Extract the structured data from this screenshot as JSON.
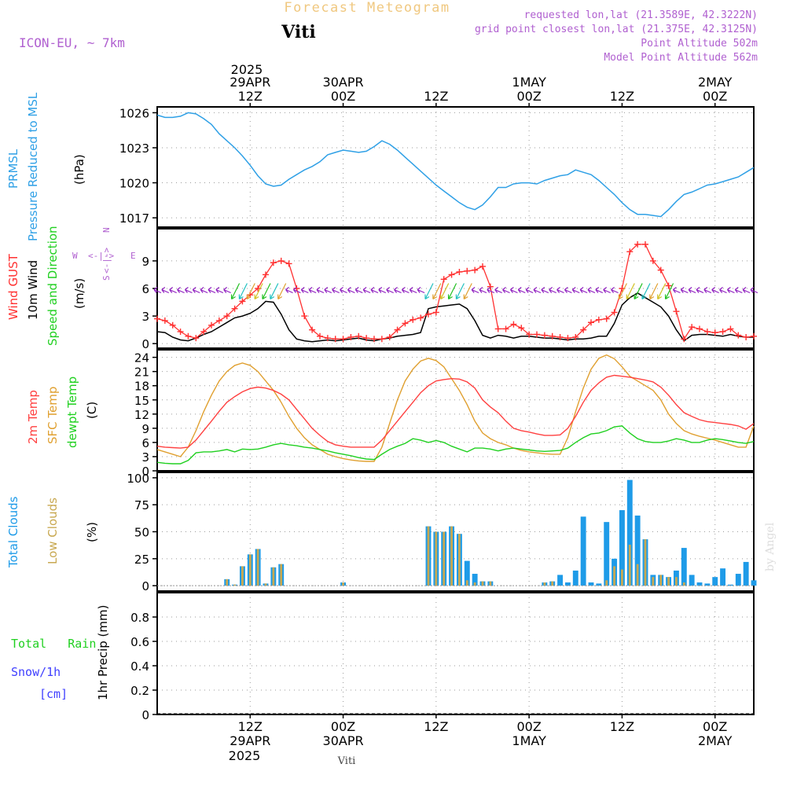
{
  "header": {
    "title": "Forecast Meteogram",
    "location": "Viti",
    "model": "ICON-EU, ~ 7km",
    "requested": "requested lon,lat (21.3589E, 42.3222N)",
    "gridpoint": "grid point closest lon,lat (21.375E, 42.3125N)",
    "point_alt": "Point Altitude 502m",
    "model_alt": "Model Point Altitude 562m",
    "footer": "Viti",
    "credit": "by Angel"
  },
  "time_axis": {
    "year": "2025",
    "ticks_top": [
      {
        "t": 12,
        "l1": "29APR",
        "l2": "12Z"
      },
      {
        "t": 24,
        "l1": "30APR",
        "l2": "00Z"
      },
      {
        "t": 36,
        "l1": "",
        "l2": "12Z"
      },
      {
        "t": 48,
        "l1": "1MAY",
        "l2": "00Z"
      },
      {
        "t": 60,
        "l1": "",
        "l2": "12Z"
      },
      {
        "t": 72,
        "l1": "2MAY",
        "l2": "00Z"
      }
    ],
    "ticks_bottom": [
      {
        "t": 12,
        "l1": "12Z",
        "l2": "29APR",
        "l3": "2025"
      },
      {
        "t": 24,
        "l1": "00Z",
        "l2": "30APR",
        "l3": ""
      },
      {
        "t": 36,
        "l1": "12Z",
        "l2": "",
        "l3": ""
      },
      {
        "t": 48,
        "l1": "00Z",
        "l2": "1MAY",
        "l3": ""
      },
      {
        "t": 60,
        "l1": "12Z",
        "l2": "",
        "l3": ""
      },
      {
        "t": 72,
        "l1": "00Z",
        "l2": "2MAY",
        "l3": ""
      }
    ],
    "units": "hours from 29APR 00Z",
    "range": [
      0,
      77
    ]
  },
  "colors": {
    "pressure": "#2fa0e6",
    "gust": "#ff3030",
    "wind": "#000000",
    "t2m": "#ff4040",
    "tsfc": "#e0a030",
    "dewpt": "#20d020",
    "total_clouds": "#1e9be8",
    "low_clouds": "#c8a850",
    "rain": "#20d020",
    "snow": "#4040ff",
    "purple": "#b060d0",
    "orange_title": "#f0c880"
  },
  "panels": {
    "pressure": {
      "label1": "PRMSL",
      "label2": "Pressure Reduced to MSL",
      "unit": "(hPa)"
    },
    "wind": {
      "label1": "Wind GUST",
      "label2": "10m Wind",
      "label3": "Speed and Direction",
      "unit": "(m/s)",
      "compass": {
        "n": "N",
        "s": "S",
        "w": "W",
        "e": "E"
      }
    },
    "temp": {
      "label1": "2m Temp",
      "label2": "SFC Temp",
      "label3": "dewpt Temp",
      "unit": "(C)"
    },
    "clouds": {
      "label1": "Total Clouds",
      "label2": "Low Clouds",
      "unit": "(%)"
    },
    "precip": {
      "label_rain": "Total   Rain",
      "label_snow": "Snow/1h",
      "label_cm": "[cm]",
      "unit": "1hr Precip (mm)"
    }
  },
  "chart_data": [
    {
      "type": "line",
      "name": "PRMSL",
      "ylim": [
        1016.2,
        1026.5
      ],
      "yticks": [
        1017,
        1020,
        1023,
        1026
      ],
      "x": [
        0,
        1,
        2,
        3,
        4,
        5,
        6,
        7,
        8,
        9,
        10,
        11,
        12,
        13,
        14,
        15,
        16,
        17,
        18,
        19,
        20,
        21,
        22,
        23,
        24,
        25,
        26,
        27,
        28,
        29,
        30,
        31,
        32,
        33,
        34,
        35,
        36,
        37,
        38,
        39,
        40,
        41,
        42,
        43,
        44,
        45,
        46,
        47,
        48,
        49,
        50,
        51,
        52,
        53,
        54,
        55,
        56,
        57,
        58,
        59,
        60,
        61,
        62,
        63,
        64,
        65,
        66,
        67,
        68,
        69,
        70,
        71,
        72,
        73,
        74,
        75,
        76,
        77
      ],
      "y": [
        1025.8,
        1025.6,
        1025.6,
        1025.7,
        1026.0,
        1025.9,
        1025.5,
        1025.0,
        1024.2,
        1023.6,
        1023.0,
        1022.3,
        1021.5,
        1020.6,
        1019.9,
        1019.7,
        1019.8,
        1020.3,
        1020.7,
        1021.1,
        1021.4,
        1021.8,
        1022.4,
        1022.6,
        1022.8,
        1022.7,
        1022.6,
        1022.7,
        1023.1,
        1023.6,
        1023.3,
        1022.8,
        1022.2,
        1021.6,
        1021.0,
        1020.4,
        1019.8,
        1019.3,
        1018.8,
        1018.3,
        1017.9,
        1017.7,
        1018.1,
        1018.8,
        1019.6,
        1019.6,
        1019.9,
        1020.0,
        1020.0,
        1019.9,
        1020.2,
        1020.4,
        1020.6,
        1020.7,
        1021.1,
        1020.9,
        1020.7,
        1020.2,
        1019.6,
        1019.0,
        1018.3,
        1017.7,
        1017.3,
        1017.3,
        1017.2,
        1017.1,
        1017.7,
        1018.4,
        1019.0,
        1019.2,
        1019.5,
        1019.8,
        1019.9,
        1020.1,
        1020.3,
        1020.5,
        1020.9,
        1021.3
      ]
    },
    {
      "type": "line",
      "name": "Wind",
      "ylim": [
        -0.5,
        12.5
      ],
      "yticks": [
        0,
        3,
        6,
        9
      ],
      "x": [
        0,
        1,
        2,
        3,
        4,
        5,
        6,
        7,
        8,
        9,
        10,
        11,
        12,
        13,
        14,
        15,
        16,
        17,
        18,
        19,
        20,
        21,
        22,
        23,
        24,
        25,
        26,
        27,
        28,
        29,
        30,
        31,
        32,
        33,
        34,
        35,
        36,
        37,
        38,
        39,
        40,
        41,
        42,
        43,
        44,
        45,
        46,
        47,
        48,
        49,
        50,
        51,
        52,
        53,
        54,
        55,
        56,
        57,
        58,
        59,
        60,
        61,
        62,
        63,
        64,
        65,
        66,
        67,
        68,
        69,
        70,
        71,
        72,
        73,
        74,
        75,
        76,
        77
      ],
      "gust": [
        2.7,
        2.5,
        2.0,
        1.3,
        0.8,
        0.6,
        1.3,
        2.0,
        2.5,
        3.0,
        3.8,
        4.6,
        5.3,
        6.0,
        7.5,
        8.8,
        9.0,
        8.7,
        6.0,
        3.0,
        1.5,
        0.8,
        0.6,
        0.5,
        0.5,
        0.7,
        0.8,
        0.6,
        0.5,
        0.5,
        0.7,
        1.5,
        2.2,
        2.6,
        2.8,
        3.2,
        3.4,
        7.0,
        7.5,
        7.8,
        7.9,
        8.0,
        8.4,
        6.2,
        1.6,
        1.6,
        2.1,
        1.7,
        1.0,
        1.0,
        0.9,
        0.8,
        0.7,
        0.6,
        0.7,
        1.5,
        2.3,
        2.6,
        2.7,
        3.4,
        6.0,
        10.0,
        10.8,
        10.8,
        9.0,
        8.0,
        6.3,
        3.5,
        0.5,
        1.8,
        1.6,
        1.3,
        1.2,
        1.3,
        1.6,
        0.9,
        0.7,
        0.8
      ],
      "speed": [
        1.3,
        1.2,
        0.7,
        0.4,
        0.3,
        0.6,
        1.0,
        1.3,
        1.8,
        2.3,
        2.8,
        3.0,
        3.3,
        3.8,
        4.6,
        4.5,
        3.2,
        1.5,
        0.5,
        0.3,
        0.2,
        0.3,
        0.4,
        0.3,
        0.4,
        0.5,
        0.6,
        0.4,
        0.3,
        0.5,
        0.6,
        0.8,
        0.9,
        1.0,
        1.2,
        3.8,
        4.0,
        4.1,
        4.2,
        4.3,
        3.8,
        2.5,
        0.9,
        0.6,
        0.9,
        0.8,
        0.6,
        0.8,
        0.8,
        0.7,
        0.6,
        0.6,
        0.5,
        0.4,
        0.5,
        0.5,
        0.6,
        0.8,
        0.8,
        2.2,
        4.2,
        5.0,
        5.5,
        5.0,
        4.5,
        4.0,
        3.0,
        1.5,
        0.3,
        0.9,
        1.0,
        1.0,
        0.9,
        0.8,
        1.0,
        0.8,
        0.7,
        0.7
      ],
      "arrow_level": 5.7
    },
    {
      "type": "line",
      "name": "Temperature",
      "ylim": [
        0,
        25.6
      ],
      "yticks": [
        0,
        3,
        6,
        9,
        12,
        15,
        18,
        21,
        24
      ],
      "x": [
        0,
        1,
        2,
        3,
        4,
        5,
        6,
        7,
        8,
        9,
        10,
        11,
        12,
        13,
        14,
        15,
        16,
        17,
        18,
        19,
        20,
        21,
        22,
        23,
        24,
        25,
        26,
        27,
        28,
        29,
        30,
        31,
        32,
        33,
        34,
        35,
        36,
        37,
        38,
        39,
        40,
        41,
        42,
        43,
        44,
        45,
        46,
        47,
        48,
        49,
        50,
        51,
        52,
        53,
        54,
        55,
        56,
        57,
        58,
        59,
        60,
        61,
        62,
        63,
        64,
        65,
        66,
        67,
        68,
        69,
        70,
        71,
        72,
        73,
        74,
        75,
        76,
        77
      ],
      "t2m": [
        5.2,
        5.0,
        4.9,
        4.8,
        5.0,
        6.5,
        8.5,
        10.5,
        12.6,
        14.5,
        15.7,
        16.7,
        17.4,
        17.7,
        17.5,
        17.0,
        16.2,
        15.0,
        13.0,
        11.0,
        9.0,
        7.5,
        6.2,
        5.5,
        5.2,
        5.0,
        5.0,
        5.0,
        5.0,
        6.5,
        8.5,
        10.5,
        12.5,
        14.5,
        16.5,
        18.0,
        19.0,
        19.3,
        19.5,
        19.4,
        18.8,
        17.5,
        15.0,
        13.5,
        12.3,
        10.5,
        9.0,
        8.5,
        8.2,
        7.8,
        7.5,
        7.5,
        7.6,
        9.0,
        11.5,
        14.5,
        17.0,
        18.6,
        19.8,
        20.2,
        20.0,
        19.8,
        19.5,
        19.2,
        18.8,
        17.7,
        16.0,
        14.0,
        12.3,
        11.5,
        10.8,
        10.4,
        10.2,
        10.0,
        9.8,
        9.5,
        8.8,
        10.0
      ],
      "tsfc": [
        4.5,
        4.0,
        3.5,
        3.0,
        5.0,
        8.5,
        12.5,
        16.0,
        19.0,
        21.0,
        22.3,
        22.8,
        22.3,
        21.0,
        19.0,
        17.0,
        14.5,
        11.5,
        9.0,
        7.0,
        5.5,
        4.5,
        3.5,
        3.0,
        2.6,
        2.3,
        2.1,
        2.0,
        2.0,
        5.0,
        10.0,
        15.0,
        19.0,
        21.5,
        23.2,
        23.8,
        23.3,
        22.0,
        19.5,
        17.0,
        14.0,
        10.5,
        8.0,
        6.8,
        6.0,
        5.5,
        4.8,
        4.3,
        4.0,
        3.8,
        3.6,
        3.5,
        3.5,
        7.0,
        12.5,
        17.5,
        21.5,
        23.8,
        24.5,
        23.7,
        22.0,
        20.0,
        19.0,
        18.0,
        17.0,
        15.0,
        12.0,
        10.0,
        8.5,
        7.8,
        7.3,
        6.9,
        6.5,
        6.0,
        5.5,
        5.0,
        5.0,
        9.5
      ],
      "dewpt": [
        1.8,
        1.6,
        1.5,
        1.5,
        2.2,
        3.8,
        4.0,
        4.0,
        4.2,
        4.5,
        4.0,
        4.6,
        4.5,
        4.6,
        5.0,
        5.5,
        5.8,
        5.5,
        5.3,
        5.0,
        4.8,
        4.5,
        4.2,
        3.8,
        3.5,
        3.2,
        2.8,
        2.5,
        2.4,
        3.5,
        4.5,
        5.2,
        5.8,
        6.8,
        6.5,
        6.0,
        6.4,
        6.0,
        5.2,
        4.6,
        4.0,
        4.8,
        4.8,
        4.6,
        4.2,
        4.6,
        4.8,
        4.6,
        4.4,
        4.2,
        4.1,
        4.2,
        4.3,
        4.8,
        6.0,
        7.0,
        7.8,
        8.0,
        8.5,
        9.3,
        9.5,
        8.0,
        6.8,
        6.2,
        6.0,
        6.0,
        6.3,
        6.8,
        6.5,
        6.0,
        6.0,
        6.5,
        6.8,
        6.6,
        6.3,
        6.0,
        5.8,
        6.2
      ]
    },
    {
      "type": "bar",
      "name": "Clouds",
      "ylim": [
        -5,
        105
      ],
      "yticks": [
        0,
        25,
        50,
        75,
        100
      ],
      "x": [
        9,
        10,
        11,
        12,
        13,
        14,
        15,
        16,
        17,
        18,
        19,
        20,
        21,
        22,
        23,
        24,
        25,
        26,
        27,
        28,
        29,
        30,
        31,
        32,
        33,
        34,
        35,
        36,
        37,
        38,
        39,
        40,
        41,
        42,
        43,
        44,
        45,
        46,
        47,
        48,
        49,
        50,
        51,
        52,
        53,
        54,
        55,
        56,
        57,
        58,
        59,
        60,
        61,
        62,
        63,
        64,
        65,
        66,
        67,
        68,
        69,
        70,
        71,
        72,
        73,
        74,
        75,
        76,
        77
      ],
      "total": [
        6,
        1,
        18,
        29,
        34,
        2,
        17,
        20,
        0,
        0,
        0,
        0,
        0,
        0,
        0,
        3,
        0,
        0,
        0,
        0,
        0,
        0,
        0,
        0,
        0,
        0,
        55,
        50,
        50,
        55,
        48,
        23,
        11,
        4,
        4,
        0,
        0,
        0,
        0,
        0,
        0,
        3,
        4,
        10,
        3,
        14,
        64,
        3,
        2,
        59,
        25,
        70,
        98,
        65,
        43,
        10,
        10,
        8,
        14,
        35,
        10,
        3,
        2,
        8,
        16,
        1,
        11,
        22,
        5
      ],
      "low": [
        6,
        1,
        18,
        29,
        34,
        2,
        17,
        20,
        0,
        0,
        0,
        0,
        0,
        0,
        0,
        3,
        0,
        0,
        0,
        0,
        0,
        0,
        0,
        0,
        0,
        0,
        55,
        50,
        50,
        55,
        48,
        5,
        3,
        4,
        4,
        0,
        0,
        0,
        0,
        0,
        0,
        3,
        4,
        0,
        0,
        0,
        0,
        0,
        0,
        5,
        18,
        15,
        38,
        20,
        43,
        8,
        10,
        8,
        8,
        3,
        0,
        0,
        0,
        0,
        0,
        0,
        0,
        0,
        0
      ]
    },
    {
      "type": "bar",
      "name": "Precipitation",
      "ylim": [
        0,
        1.0
      ],
      "yticks": [
        0,
        0.2,
        0.4,
        0.6,
        0.8
      ],
      "x": [
        0,
        77
      ],
      "rain": [
        0,
        0
      ],
      "snow": [
        0,
        0
      ]
    }
  ]
}
